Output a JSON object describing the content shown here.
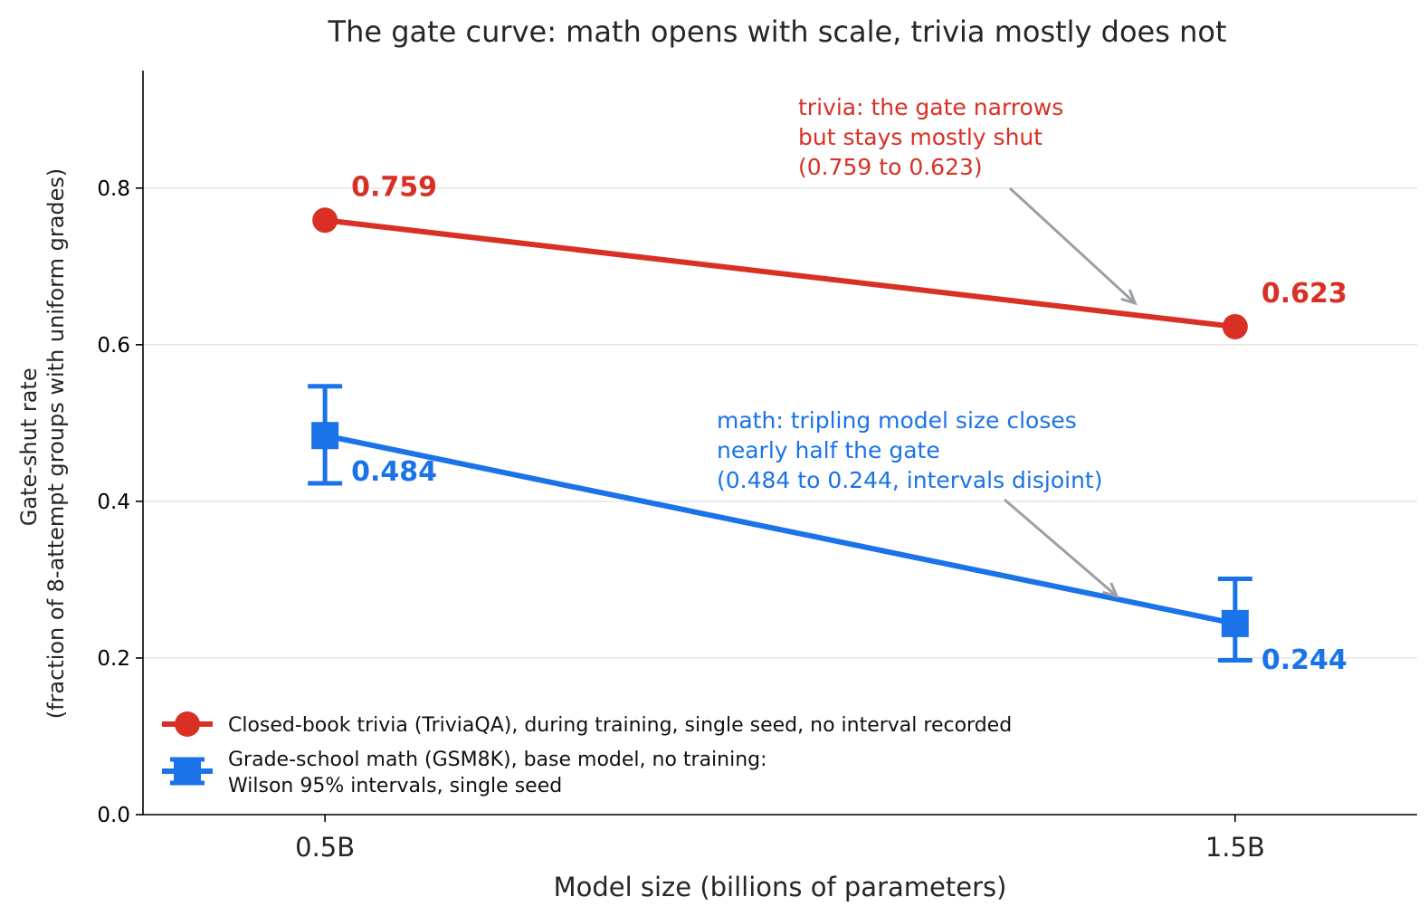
{
  "chart_data": {
    "type": "line",
    "title": "The gate curve: math opens with scale, trivia mostly does not",
    "xlabel": "Model size (billions of parameters)",
    "ylabel": [
      "Gate-shut rate",
      "(fraction of 8-attempt groups with uniform grades)"
    ],
    "categories": [
      "0.5B",
      "1.5B"
    ],
    "x": [
      0.5,
      1.5
    ],
    "xlim": [
      0.3,
      1.7
    ],
    "ylim": [
      0,
      0.95
    ],
    "yticks": [
      0.0,
      0.2,
      0.4,
      0.6,
      0.8
    ],
    "ytick_labels": [
      "0.0",
      "0.2",
      "0.4",
      "0.6",
      "0.8"
    ],
    "grid": "horizontal",
    "legend_position": "lower-left",
    "series": [
      {
        "name": "Closed-book trivia (TriviaQA), during training, single seed, no interval recorded",
        "legend_lines": [
          "Closed-book trivia (TriviaQA), during training, single seed, no interval recorded"
        ],
        "color": "#d93025",
        "marker": "circle",
        "values": [
          0.759,
          0.623
        ],
        "value_labels": [
          "0.759",
          "0.623"
        ]
      },
      {
        "name": "Grade-school math (GSM8K), base model, no training: Wilson 95% intervals, single seed",
        "legend_lines": [
          "Grade-school math (GSM8K), base model, no training:",
          "Wilson 95% intervals, single seed"
        ],
        "color": "#1a73e8",
        "marker": "square",
        "values": [
          0.484,
          0.244
        ],
        "ci_low": [
          0.423,
          0.197
        ],
        "ci_high": [
          0.547,
          0.301
        ],
        "value_labels": [
          "0.484",
          "0.244"
        ]
      }
    ],
    "annotations": [
      {
        "series": 0,
        "lines": [
          "trivia: the gate narrows",
          "but stays mostly shut",
          "(0.759 to 0.623)"
        ],
        "color": "#d93025",
        "arrow_target": [
          1.39,
          0.653
        ]
      },
      {
        "series": 1,
        "lines": [
          "math: tripling model size closes",
          "nearly half the gate",
          "(0.484 to 0.244, intervals disjoint)"
        ],
        "color": "#1a73e8",
        "arrow_target": [
          1.37,
          0.279
        ]
      }
    ],
    "arrow_color": "#9aa0a6"
  }
}
